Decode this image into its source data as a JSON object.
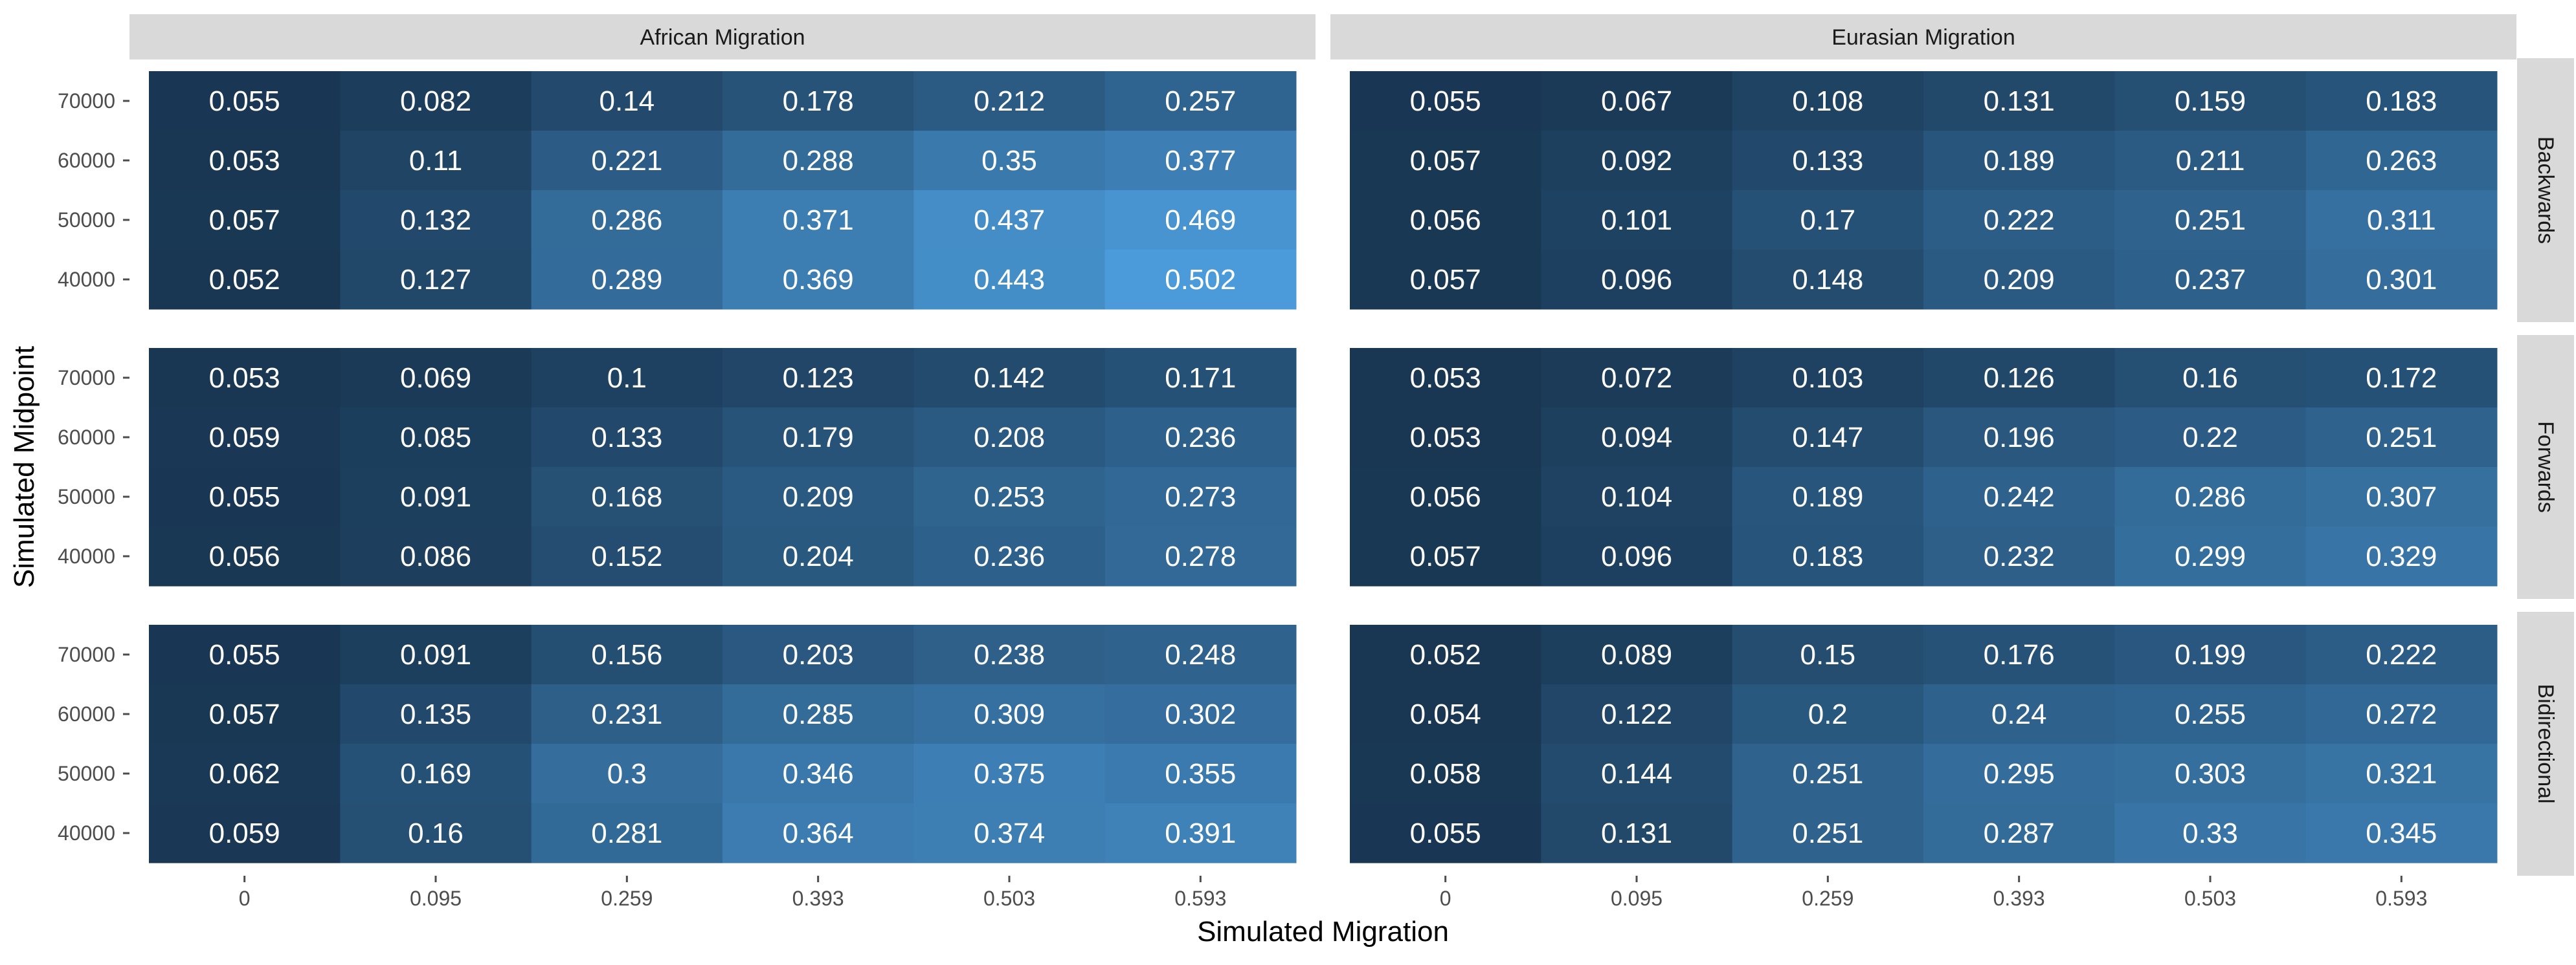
{
  "chart_data": {
    "type": "heatmap",
    "title": "",
    "xlabel": "Simulated Migration",
    "ylabel": "Simulated Midpoint",
    "x_categories": [
      "0",
      "0.095",
      "0.259",
      "0.393",
      "0.503",
      "0.593"
    ],
    "y_categories": [
      "70000",
      "60000",
      "50000",
      "40000"
    ],
    "facet_columns": [
      "African Migration",
      "Eurasian Migration"
    ],
    "facet_rows": [
      "Backwards",
      "Forwards",
      "Bidirectional"
    ],
    "color_scale": {
      "low": "#132B43",
      "high": "#56B1F7",
      "min": 0.0,
      "max": 0.6
    },
    "panels": [
      {
        "column": "African Migration",
        "row": "Backwards",
        "values": [
          [
            "0.055",
            "0.082",
            "0.14",
            "0.178",
            "0.212",
            "0.257"
          ],
          [
            "0.053",
            "0.11",
            "0.221",
            "0.288",
            "0.35",
            "0.377"
          ],
          [
            "0.057",
            "0.132",
            "0.286",
            "0.371",
            "0.437",
            "0.469"
          ],
          [
            "0.052",
            "0.127",
            "0.289",
            "0.369",
            "0.443",
            "0.502"
          ]
        ]
      },
      {
        "column": "Eurasian Migration",
        "row": "Backwards",
        "values": [
          [
            "0.055",
            "0.067",
            "0.108",
            "0.131",
            "0.159",
            "0.183"
          ],
          [
            "0.057",
            "0.092",
            "0.133",
            "0.189",
            "0.211",
            "0.263"
          ],
          [
            "0.056",
            "0.101",
            "0.17",
            "0.222",
            "0.251",
            "0.311"
          ],
          [
            "0.057",
            "0.096",
            "0.148",
            "0.209",
            "0.237",
            "0.301"
          ]
        ]
      },
      {
        "column": "African Migration",
        "row": "Forwards",
        "values": [
          [
            "0.053",
            "0.069",
            "0.1",
            "0.123",
            "0.142",
            "0.171"
          ],
          [
            "0.059",
            "0.085",
            "0.133",
            "0.179",
            "0.208",
            "0.236"
          ],
          [
            "0.055",
            "0.091",
            "0.168",
            "0.209",
            "0.253",
            "0.273"
          ],
          [
            "0.056",
            "0.086",
            "0.152",
            "0.204",
            "0.236",
            "0.278"
          ]
        ]
      },
      {
        "column": "Eurasian Migration",
        "row": "Forwards",
        "values": [
          [
            "0.053",
            "0.072",
            "0.103",
            "0.126",
            "0.16",
            "0.172"
          ],
          [
            "0.053",
            "0.094",
            "0.147",
            "0.196",
            "0.22",
            "0.251"
          ],
          [
            "0.056",
            "0.104",
            "0.189",
            "0.242",
            "0.286",
            "0.307"
          ],
          [
            "0.057",
            "0.096",
            "0.183",
            "0.232",
            "0.299",
            "0.329"
          ]
        ]
      },
      {
        "column": "African Migration",
        "row": "Bidirectional",
        "values": [
          [
            "0.055",
            "0.091",
            "0.156",
            "0.203",
            "0.238",
            "0.248"
          ],
          [
            "0.057",
            "0.135",
            "0.231",
            "0.285",
            "0.309",
            "0.302"
          ],
          [
            "0.062",
            "0.169",
            "0.3",
            "0.346",
            "0.375",
            "0.355"
          ],
          [
            "0.059",
            "0.16",
            "0.281",
            "0.364",
            "0.374",
            "0.391"
          ]
        ]
      },
      {
        "column": "Eurasian Migration",
        "row": "Bidirectional",
        "values": [
          [
            "0.052",
            "0.089",
            "0.15",
            "0.176",
            "0.199",
            "0.222"
          ],
          [
            "0.054",
            "0.122",
            "0.2",
            "0.24",
            "0.255",
            "0.272"
          ],
          [
            "0.058",
            "0.144",
            "0.251",
            "0.295",
            "0.303",
            "0.321"
          ],
          [
            "0.055",
            "0.131",
            "0.251",
            "0.287",
            "0.33",
            "0.345"
          ]
        ]
      }
    ],
    "legend": "none",
    "grid": false
  }
}
